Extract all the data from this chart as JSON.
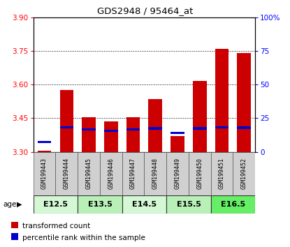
{
  "title": "GDS2948 / 95464_at",
  "samples": [
    "GSM199443",
    "GSM199444",
    "GSM199445",
    "GSM199446",
    "GSM199447",
    "GSM199448",
    "GSM199449",
    "GSM199450",
    "GSM199451",
    "GSM199452"
  ],
  "transformed_counts": [
    3.305,
    3.575,
    3.455,
    3.435,
    3.455,
    3.535,
    3.37,
    3.615,
    3.76,
    3.74
  ],
  "percentile_values": [
    3.345,
    3.41,
    3.4,
    3.395,
    3.4,
    3.405,
    3.385,
    3.405,
    3.41,
    3.408
  ],
  "age_groups": [
    {
      "label": "E12.5",
      "start": 0,
      "end": 1,
      "color": "#d4f7d4"
    },
    {
      "label": "E13.5",
      "start": 2,
      "end": 3,
      "color": "#b8f0b8"
    },
    {
      "label": "E14.5",
      "start": 4,
      "end": 5,
      "color": "#d4f7d4"
    },
    {
      "label": "E15.5",
      "start": 6,
      "end": 7,
      "color": "#b8f0b8"
    },
    {
      "label": "E16.5",
      "start": 8,
      "end": 9,
      "color": "#66ee66"
    }
  ],
  "ylim_left": [
    3.3,
    3.9
  ],
  "ylim_right": [
    0,
    100
  ],
  "yticks_left": [
    3.3,
    3.45,
    3.6,
    3.75,
    3.9
  ],
  "yticks_right": [
    0,
    25,
    50,
    75,
    100
  ],
  "bar_color": "#cc0000",
  "percentile_color": "#0000cc",
  "bar_bottom": 3.3,
  "legend_items": [
    "transformed count",
    "percentile rank within the sample"
  ]
}
